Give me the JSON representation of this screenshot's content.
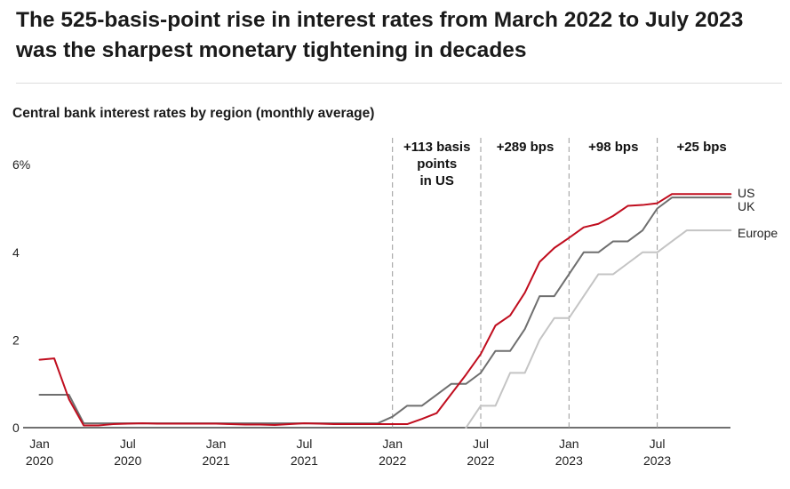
{
  "headline": "The 525-basis-point rise in interest rates from March 2022 to July 2023 was the sharpest monetary tightening in decades",
  "chart_data": {
    "type": "line",
    "title": "Central bank interest rates by region (monthly average)",
    "xlabel": "",
    "ylabel": "",
    "ylim": [
      0,
      6
    ],
    "yticks": [
      0,
      2,
      4,
      6
    ],
    "ytick_labels": [
      "0",
      "2",
      "4",
      "6%"
    ],
    "x_start": "Jan 2020",
    "xticks": [
      {
        "month": "Jan",
        "year": "2020",
        "index": 0
      },
      {
        "month": "Jul",
        "year": "2020",
        "index": 6
      },
      {
        "month": "Jan",
        "year": "2021",
        "index": 12
      },
      {
        "month": "Jul",
        "year": "2021",
        "index": 18
      },
      {
        "month": "Jan",
        "year": "2022",
        "index": 24
      },
      {
        "month": "Jul",
        "year": "2022",
        "index": 30
      },
      {
        "month": "Jan",
        "year": "2023",
        "index": 36
      },
      {
        "month": "Jul",
        "year": "2023",
        "index": 42
      }
    ],
    "grid": false,
    "annotations": [
      {
        "month_index": 24,
        "lines": [
          "+113 basis",
          "points",
          "in US"
        ]
      },
      {
        "month_index": 30,
        "lines": [
          "+289 bps"
        ]
      },
      {
        "month_index": 36,
        "lines": [
          "+98 bps"
        ]
      },
      {
        "month_index": 42,
        "lines": [
          "+25 bps"
        ]
      }
    ],
    "series": [
      {
        "name": "US",
        "color": "#c00d1e",
        "values": [
          1.55,
          1.58,
          0.65,
          0.05,
          0.05,
          0.08,
          0.09,
          0.1,
          0.09,
          0.09,
          0.09,
          0.09,
          0.09,
          0.08,
          0.07,
          0.07,
          0.06,
          0.08,
          0.1,
          0.09,
          0.08,
          0.08,
          0.08,
          0.08,
          0.08,
          0.08,
          0.2,
          0.33,
          0.77,
          1.21,
          1.68,
          2.33,
          2.56,
          3.08,
          3.78,
          4.1,
          4.33,
          4.57,
          4.65,
          4.83,
          5.06,
          5.08,
          5.12,
          5.33,
          5.33,
          5.33,
          5.33,
          5.33
        ]
      },
      {
        "name": "UK",
        "color": "#6f6f6f",
        "values": [
          0.75,
          0.75,
          0.75,
          0.1,
          0.1,
          0.1,
          0.1,
          0.1,
          0.1,
          0.1,
          0.1,
          0.1,
          0.1,
          0.1,
          0.1,
          0.1,
          0.1,
          0.1,
          0.1,
          0.1,
          0.1,
          0.1,
          0.1,
          0.1,
          0.25,
          0.5,
          0.5,
          0.75,
          1.0,
          1.0,
          1.25,
          1.75,
          1.75,
          2.25,
          3.0,
          3.0,
          3.5,
          4.0,
          4.0,
          4.25,
          4.25,
          4.5,
          5.0,
          5.25,
          5.25,
          5.25,
          5.25,
          5.25
        ]
      },
      {
        "name": "Europe",
        "color": "#c4c4c4",
        "values": [
          null,
          null,
          null,
          null,
          null,
          null,
          null,
          null,
          null,
          null,
          null,
          null,
          null,
          null,
          null,
          null,
          null,
          null,
          null,
          null,
          null,
          null,
          null,
          null,
          null,
          null,
          null,
          null,
          null,
          0.0,
          0.5,
          0.5,
          1.25,
          1.25,
          2.0,
          2.5,
          2.5,
          3.0,
          3.5,
          3.5,
          3.75,
          4.0,
          4.0,
          4.25,
          4.5,
          4.5,
          4.5,
          4.5
        ]
      }
    ]
  }
}
